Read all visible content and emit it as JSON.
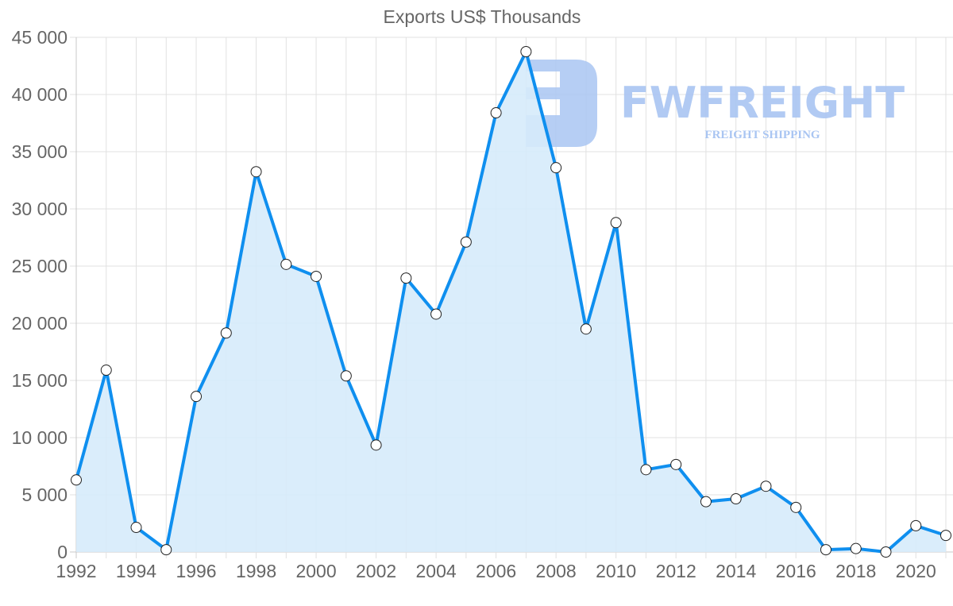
{
  "chart_data": {
    "type": "line",
    "title": "Exports US$ Thousands",
    "xlabel": "",
    "ylabel": "",
    "ylim": [
      0,
      45000
    ],
    "yticks": [
      "0",
      "5 000",
      "10 000",
      "15 000",
      "20 000",
      "25 000",
      "30 000",
      "35 000",
      "40 000",
      "45 000"
    ],
    "xtick_labels": [
      "1992",
      "1994",
      "1996",
      "1998",
      "2000",
      "2002",
      "2004",
      "2006",
      "2008",
      "2010",
      "2012",
      "2014",
      "2016",
      "2018",
      "2020"
    ],
    "grid": true,
    "legend": null,
    "x": [
      1992,
      1993,
      1994,
      1995,
      1996,
      1997,
      1998,
      1999,
      2000,
      2001,
      2002,
      2003,
      2004,
      2005,
      2006,
      2007,
      2008,
      2009,
      2010,
      2011,
      2012,
      2013,
      2014,
      2015,
      2016,
      2017,
      2018,
      2019,
      2020,
      2021
    ],
    "series": [
      {
        "name": "Exports US$ Thousands",
        "color": "#0F8FEF",
        "fill": "#D6EBFB",
        "values": [
          6300,
          15900,
          2150,
          200,
          13600,
          19150,
          33250,
          25150,
          24100,
          15400,
          9350,
          23950,
          20800,
          27100,
          38400,
          43750,
          33600,
          19500,
          28800,
          7200,
          7650,
          4400,
          4650,
          5750,
          3900,
          200,
          300,
          0,
          2300,
          1450
        ]
      }
    ]
  },
  "watermark": {
    "brand": "FWFREIGHT",
    "tagline": "FREIGHT SHIPPING",
    "color": "#A9C5F2"
  }
}
